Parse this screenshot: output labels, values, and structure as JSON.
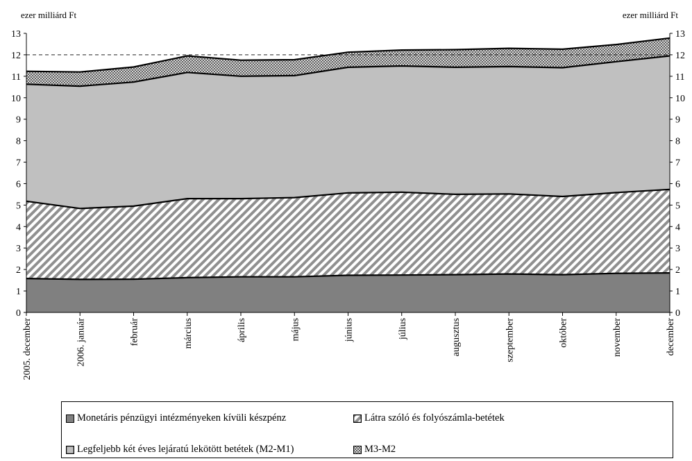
{
  "chart_data": {
    "type": "area",
    "stacked": true,
    "y_unit_left": "ezer milliárd Ft",
    "y_unit_right": "ezer milliárd Ft",
    "categories": [
      "2005. december",
      "2006. január",
      "február",
      "március",
      "április",
      "május",
      "június",
      "július",
      "augusztus",
      "szeptember",
      "október",
      "november",
      "december"
    ],
    "ylim": [
      0,
      13
    ],
    "yticks": [
      0,
      1,
      2,
      3,
      4,
      5,
      6,
      7,
      8,
      9,
      10,
      11,
      12,
      13
    ],
    "reference_line": 12,
    "grid": false,
    "legend_position": "bottom",
    "series": [
      {
        "name": "Monetáris pénzügyi intézményeken kívüli készpénz",
        "values": [
          1.58,
          1.54,
          1.55,
          1.62,
          1.66,
          1.66,
          1.73,
          1.74,
          1.76,
          1.79,
          1.76,
          1.82,
          1.84
        ],
        "color": "#808080",
        "pattern": "solid"
      },
      {
        "name": "Látra szóló és folyószámla-betétek",
        "values": [
          3.6,
          3.3,
          3.4,
          3.68,
          3.64,
          3.69,
          3.84,
          3.86,
          3.74,
          3.73,
          3.64,
          3.76,
          3.89
        ],
        "color": "#a0a0a0",
        "pattern": "diagonal"
      },
      {
        "name": "Legfeljebb két éves lejáratú lekötött betétek (M2-M1)",
        "values": [
          5.45,
          5.7,
          5.78,
          5.88,
          5.7,
          5.68,
          5.85,
          5.88,
          5.92,
          5.93,
          6.0,
          6.1,
          6.22
        ],
        "color": "#c0c0c0",
        "pattern": "solid"
      },
      {
        "name": "M3-M2",
        "values": [
          0.6,
          0.66,
          0.7,
          0.77,
          0.75,
          0.74,
          0.7,
          0.74,
          0.82,
          0.85,
          0.86,
          0.8,
          0.83
        ],
        "color": "#707070",
        "pattern": "dots"
      }
    ]
  }
}
